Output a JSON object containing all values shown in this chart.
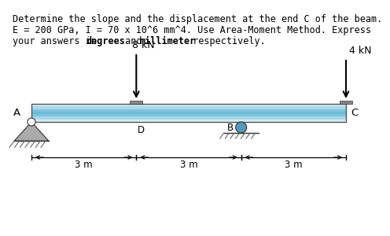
{
  "bg_color": "#ffffff",
  "beam_color_layers": [
    "#d4edf5",
    "#a8d8eb",
    "#7fc4de",
    "#6bbad6",
    "#7fc4de",
    "#a8d8eb",
    "#d4edf5"
  ],
  "beam_outline_color": "#555555",
  "support_triangle_color": "#aaaaaa",
  "support_hatch_color": "#666666",
  "roller_fill_color": "#5599bb",
  "label_A": "A",
  "label_B": "B",
  "label_C": "C",
  "label_D": "D",
  "load_8kN": "8 kN",
  "load_4kN": "4 kN",
  "dim_labels": [
    "3 m",
    "3 m",
    "3 m"
  ],
  "title_line1": "Determine the slope and the displacement at the end C of the beam.",
  "title_line2": "E = 200 GPa, I = 70 x 10^6 mm^4. Use Area-Moment Method. Express",
  "title_line3_pre": "your answers in ",
  "title_line3_bold1": "degrees",
  "title_line3_mid": " and ",
  "title_line3_bold2": "millimeter",
  "title_line3_post": " respectively.",
  "font_size_title": 8.5,
  "font_size_label": 9.5,
  "font_size_dim": 8.5,
  "font_size_load": 9.0
}
